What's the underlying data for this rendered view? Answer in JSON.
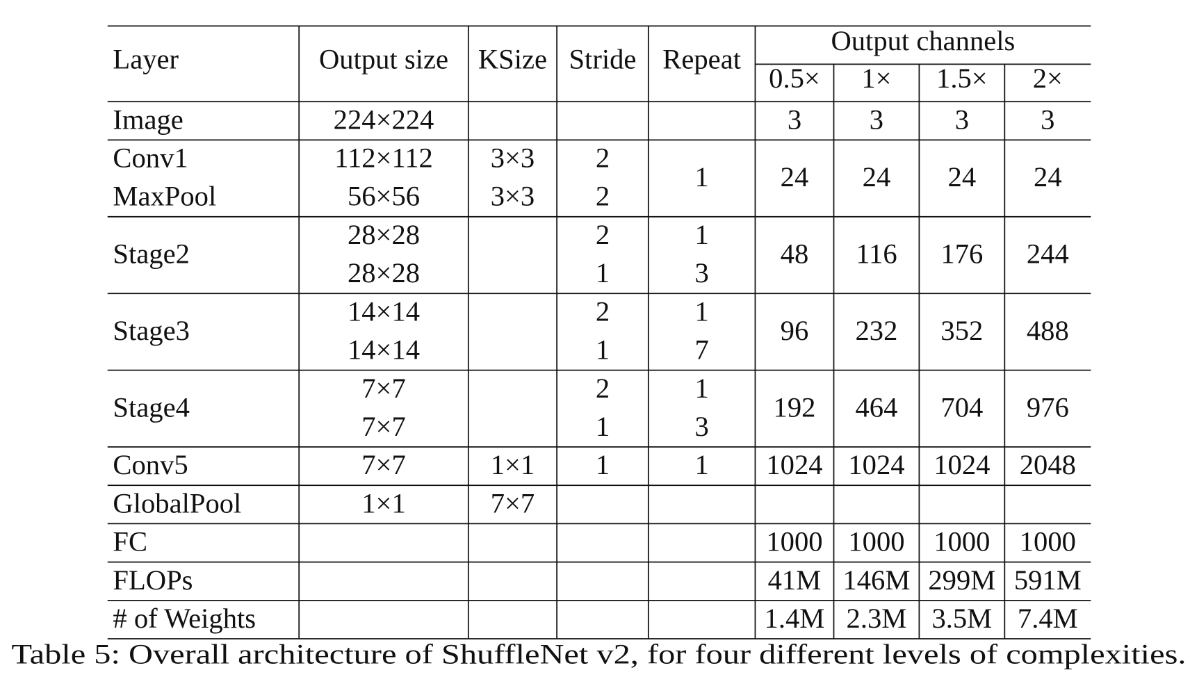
{
  "header": {
    "layer": "Layer",
    "output_size": "Output size",
    "ksize": "KSize",
    "stride": "Stride",
    "repeat": "Repeat",
    "output_channels": "Output channels",
    "widths": [
      "0.5×",
      "1×",
      "1.5×",
      "2×"
    ]
  },
  "rows": [
    {
      "layer": "Image",
      "output_size": [
        "224×224"
      ],
      "channels": [
        3,
        3,
        3,
        3
      ]
    },
    {
      "layer": [
        "Conv1",
        "MaxPool"
      ],
      "output_size": [
        "112×112",
        "56×56"
      ],
      "ksize": [
        "3×3",
        "3×3"
      ],
      "stride": [
        2,
        2
      ],
      "repeat": [
        1
      ],
      "channels": [
        24,
        24,
        24,
        24
      ]
    },
    {
      "layer": "Stage2",
      "output_size": [
        "28×28",
        "28×28"
      ],
      "stride": [
        2,
        1
      ],
      "repeat": [
        1,
        3
      ],
      "channels": [
        48,
        116,
        176,
        244
      ]
    },
    {
      "layer": "Stage3",
      "output_size": [
        "14×14",
        "14×14"
      ],
      "stride": [
        2,
        1
      ],
      "repeat": [
        1,
        7
      ],
      "channels": [
        96,
        232,
        352,
        488
      ]
    },
    {
      "layer": "Stage4",
      "output_size": [
        "7×7",
        "7×7"
      ],
      "stride": [
        2,
        1
      ],
      "repeat": [
        1,
        3
      ],
      "channels": [
        192,
        464,
        704,
        976
      ]
    },
    {
      "layer": "Conv5",
      "output_size": [
        "7×7"
      ],
      "ksize": [
        "1×1"
      ],
      "stride": [
        1
      ],
      "repeat": [
        1
      ],
      "channels": [
        1024,
        1024,
        1024,
        2048
      ]
    },
    {
      "layer": "GlobalPool",
      "output_size": [
        "1×1"
      ],
      "ksize": [
        "7×7"
      ]
    },
    {
      "layer": "FC",
      "channels": [
        1000,
        1000,
        1000,
        1000
      ]
    },
    {
      "layer": "FLOPs",
      "channels": [
        "41M",
        "146M",
        "299M",
        "591M"
      ]
    },
    {
      "layer": "# of Weights",
      "channels": [
        "1.4M",
        "2.3M",
        "3.5M",
        "7.4M"
      ]
    }
  ],
  "caption": "Table 5: Overall architecture of ShuffleNet v2, for four different levels of complexities."
}
